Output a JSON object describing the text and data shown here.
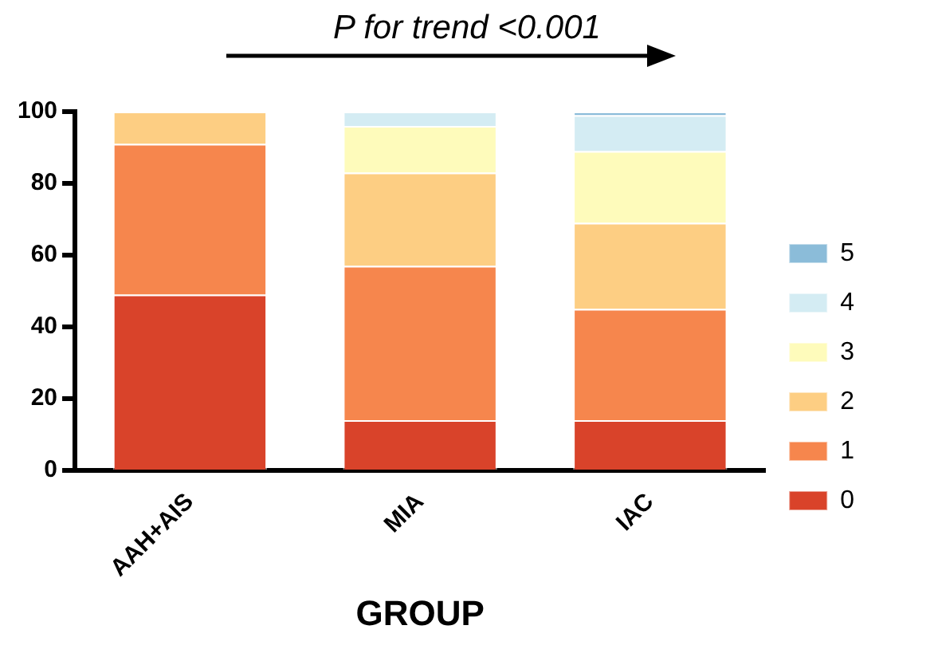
{
  "chart_data": {
    "type": "bar",
    "stacked": true,
    "xlabel": "GROUP",
    "categories": [
      "AAH+AIS",
      "MIA",
      "IAC"
    ],
    "series": [
      {
        "name": "0",
        "color": "#d9432a",
        "values": [
          49,
          14,
          14
        ]
      },
      {
        "name": "1",
        "color": "#f6864d",
        "values": [
          42,
          43,
          31
        ]
      },
      {
        "name": "2",
        "color": "#fdce83",
        "values": [
          9,
          26,
          24
        ]
      },
      {
        "name": "3",
        "color": "#fefbbb",
        "values": [
          0,
          13,
          20
        ]
      },
      {
        "name": "4",
        "color": "#d4ecf3",
        "values": [
          0,
          4,
          10
        ]
      },
      {
        "name": "5",
        "color": "#8bbcd9",
        "values": [
          0,
          0,
          1
        ]
      }
    ],
    "ylim": [
      0,
      100
    ],
    "yticks": [
      0,
      20,
      40,
      60,
      80,
      100
    ],
    "grid": false,
    "legend": "right",
    "annotations": [
      "P for trend <0.001"
    ]
  }
}
